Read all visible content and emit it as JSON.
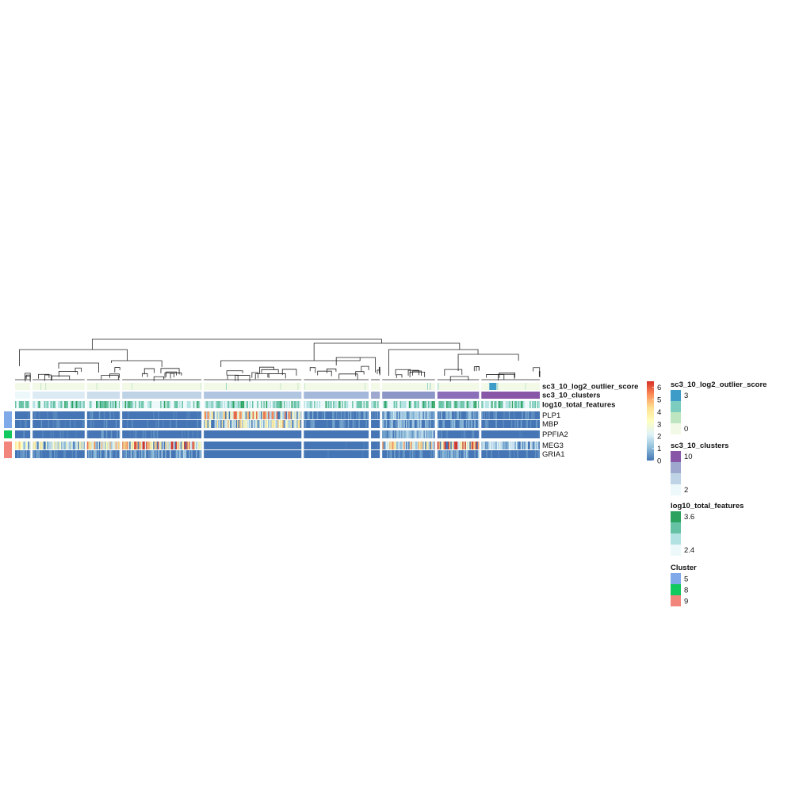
{
  "chart_data": {
    "type": "heatmap",
    "description_free": true,
    "column_groups": [
      {
        "cluster": 1,
        "width_weight": 19
      },
      {
        "cluster": 2,
        "width_weight": 65
      },
      {
        "cluster": 3,
        "width_weight": 41
      },
      {
        "cluster": 4,
        "width_weight": 99
      },
      {
        "cluster": 5,
        "width_weight": 122
      },
      {
        "cluster": 6,
        "width_weight": 81
      },
      {
        "cluster": 7,
        "width_weight": 11
      },
      {
        "cluster": 8,
        "width_weight": 66
      },
      {
        "cluster": 9,
        "width_weight": 52
      },
      {
        "cluster": 10,
        "width_weight": 73
      }
    ],
    "annotation_rows": [
      {
        "name": "sc3_10_log2_outlier_score"
      },
      {
        "name": "sc3_10_clusters"
      },
      {
        "name": "log10_total_features"
      }
    ],
    "gene_blocks": [
      {
        "cluster": "5",
        "color": "#7FA9E8",
        "genes": [
          "PLP1",
          "MBP"
        ]
      },
      {
        "cluster": "8",
        "color": "#11C95E",
        "genes": [
          "PPFIA2"
        ]
      },
      {
        "cluster": "9",
        "color": "#F2867D",
        "genes": [
          "MEG3",
          "GRIA1"
        ]
      }
    ],
    "expression_by_cluster": {
      "PLP1": [
        0.3,
        0.2,
        0.4,
        0.2,
        3.8,
        0.6,
        0.4,
        1.2,
        1.0,
        0.5
      ],
      "MBP": [
        0.3,
        0.3,
        0.4,
        0.3,
        3.0,
        0.5,
        0.3,
        1.0,
        0.8,
        0.5
      ],
      "PPFIA2": [
        0.3,
        0.2,
        0.5,
        0.3,
        0.0,
        0.1,
        0.0,
        1.3,
        0.3,
        0.1
      ],
      "MEG3": [
        3.0,
        2.4,
        3.6,
        4.3,
        0.0,
        0.1,
        0.1,
        3.4,
        5.2,
        1.5
      ],
      "GRIA1": [
        0.6,
        0.5,
        0.9,
        1.0,
        0.0,
        0.1,
        0.0,
        0.5,
        0.9,
        0.3
      ]
    },
    "color_scale": {
      "title": "",
      "ticks": [
        "0",
        "1",
        "2",
        "3",
        "4",
        "5",
        "6"
      ],
      "range": [
        0,
        6.5
      ],
      "colors": [
        "#4575B4",
        "#91BFDB",
        "#E0F3F8",
        "#FFFFBF",
        "#FEE090",
        "#FC8D59",
        "#D73027"
      ]
    },
    "legends": [
      {
        "title": "sc3_10_log2_outlier_score",
        "labels": [
          "3",
          "0"
        ],
        "colors": [
          "#3E9CC8",
          "#7CCDC0",
          "#BCE5C0",
          "#F2F9E6"
        ]
      },
      {
        "title": "sc3_10_clusters",
        "labels": [
          "10",
          "2"
        ],
        "colors": [
          "#8856A7",
          "#9EA8CF",
          "#BFD3E6",
          "#EDF8FB"
        ]
      },
      {
        "title": "log10_total_features",
        "labels": [
          "3.6",
          "2.4"
        ],
        "colors": [
          "#2CA25F",
          "#66C2A4",
          "#B2E2E2",
          "#EDF8FB"
        ]
      },
      {
        "title": "Cluster",
        "labels": [
          "5",
          "8",
          "9"
        ],
        "colors": [
          "#7FA9E8",
          "#11C95E",
          "#F2867D"
        ]
      }
    ],
    "cluster_annotation_colors": [
      "#EDF8FB",
      "#DCEAF4",
      "#CCDDEC",
      "#BFD3E6",
      "#B0C6E0",
      "#A4B9D9",
      "#9EA8CF",
      "#8C96C6",
      "#8B6FB8",
      "#8856A7"
    ],
    "outlier_highlight": {
      "cluster": 10,
      "color": "#3E9CC8"
    }
  }
}
